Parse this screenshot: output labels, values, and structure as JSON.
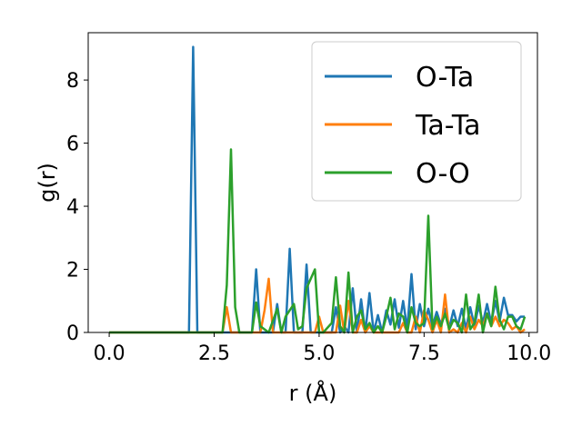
{
  "chart_data": {
    "type": "line",
    "xlabel": "r (Å)",
    "ylabel": "g(r)",
    "xlim": [
      -0.5,
      10.2
    ],
    "ylim": [
      0,
      9.5
    ],
    "xticks": [
      0.0,
      2.5,
      5.0,
      7.5,
      10.0
    ],
    "xtick_labels": [
      "0.0",
      "2.5",
      "5.0",
      "7.5",
      "10.0"
    ],
    "yticks": [
      0,
      2,
      4,
      6,
      8
    ],
    "ytick_labels": [
      "0",
      "2",
      "4",
      "6",
      "8"
    ],
    "grid": false,
    "legend_position": "top-right",
    "series": [
      {
        "name": "O-Ta",
        "color": "#1f77b4",
        "x": [
          0.0,
          1.9,
          2.0,
          2.1,
          3.4,
          3.5,
          3.6,
          3.9,
          4.0,
          4.1,
          4.2,
          4.3,
          4.4,
          4.6,
          4.7,
          4.8,
          4.9,
          5.1,
          5.2,
          5.3,
          5.4,
          5.5,
          5.6,
          5.7,
          5.8,
          5.9,
          6.0,
          6.1,
          6.2,
          6.3,
          6.4,
          6.5,
          6.6,
          6.7,
          6.8,
          6.9,
          7.0,
          7.1,
          7.2,
          7.3,
          7.4,
          7.5,
          7.6,
          7.7,
          7.8,
          7.9,
          8.0,
          8.1,
          8.2,
          8.3,
          8.4,
          8.5,
          8.6,
          8.7,
          8.8,
          8.9,
          9.0,
          9.1,
          9.2,
          9.3,
          9.4,
          9.5,
          9.6,
          9.7,
          9.8,
          9.9
        ],
        "y": [
          0,
          0,
          9.05,
          0,
          0,
          2.0,
          0,
          0,
          0.9,
          0,
          0,
          2.65,
          0,
          0,
          2.15,
          0,
          0,
          0,
          0,
          0,
          0.8,
          0,
          0.2,
          0,
          1.4,
          0,
          1.05,
          0,
          1.25,
          0,
          0.55,
          0,
          0.7,
          0.25,
          1.05,
          0.15,
          1.0,
          0.1,
          1.85,
          0.1,
          0.9,
          0.2,
          0.75,
          0.2,
          0.65,
          0.25,
          0.75,
          0.15,
          0.7,
          0.2,
          0.75,
          0.1,
          0.8,
          0.2,
          0.85,
          0.3,
          0.9,
          0.3,
          1.0,
          0.35,
          1.1,
          0.55,
          0.55,
          0.35,
          0.5,
          0.5
        ]
      },
      {
        "name": "Ta-Ta",
        "color": "#ff7f0e",
        "x": [
          0.0,
          2.7,
          2.8,
          2.9,
          3.6,
          3.7,
          3.8,
          3.9,
          4.9,
          5.0,
          5.1,
          5.4,
          5.5,
          5.6,
          5.7,
          5.8,
          5.9,
          6.0,
          6.1,
          6.2,
          6.3,
          6.9,
          7.0,
          7.1,
          7.2,
          7.3,
          7.4,
          7.5,
          7.6,
          7.7,
          7.8,
          7.9,
          8.0,
          8.1,
          8.2,
          8.3,
          8.4,
          8.5,
          8.6,
          8.7,
          8.8,
          8.9,
          9.0,
          9.1,
          9.2,
          9.3,
          9.4,
          9.5,
          9.6,
          9.7,
          9.8,
          9.9
        ],
        "y": [
          0,
          0,
          0.8,
          0,
          0,
          0.7,
          1.7,
          0,
          0,
          0.5,
          0,
          0,
          0.85,
          0,
          1.0,
          0,
          0,
          0.4,
          0,
          0.2,
          0,
          0,
          0.3,
          0,
          0,
          0.5,
          0,
          0.7,
          0.4,
          0,
          0.4,
          0,
          1.2,
          0,
          0.1,
          0,
          0.3,
          0,
          0.5,
          0.1,
          0.4,
          0.2,
          0.6,
          0.2,
          0.5,
          0.2,
          0.4,
          0.3,
          0.1,
          0.2,
          0,
          0.1
        ]
      },
      {
        "name": "O-O",
        "color": "#2ca02c",
        "x": [
          0.0,
          2.7,
          2.8,
          2.9,
          3.0,
          3.1,
          3.4,
          3.5,
          3.6,
          3.8,
          4.0,
          4.1,
          4.2,
          4.4,
          4.5,
          4.6,
          4.7,
          4.9,
          5.0,
          5.1,
          5.3,
          5.4,
          5.5,
          5.6,
          5.7,
          5.8,
          5.9,
          6.0,
          6.1,
          6.2,
          6.3,
          6.4,
          6.5,
          6.6,
          6.7,
          6.8,
          6.9,
          7.0,
          7.1,
          7.2,
          7.3,
          7.4,
          7.5,
          7.6,
          7.7,
          7.8,
          7.9,
          8.0,
          8.1,
          8.2,
          8.3,
          8.4,
          8.5,
          8.6,
          8.7,
          8.8,
          8.9,
          9.0,
          9.1,
          9.2,
          9.3,
          9.4,
          9.5,
          9.6,
          9.7,
          9.8,
          9.9
        ],
        "y": [
          0,
          0,
          1.5,
          5.8,
          0.8,
          0,
          0,
          0.95,
          0.2,
          0,
          0.75,
          0,
          0.5,
          0.9,
          0.1,
          0.2,
          1.4,
          2.0,
          0,
          0,
          0.3,
          1.75,
          0.2,
          0,
          1.9,
          0,
          0.5,
          0.7,
          0.1,
          0.3,
          0,
          0.2,
          0,
          0.5,
          1.1,
          0.1,
          0.6,
          0.5,
          0,
          0.8,
          0.3,
          0.2,
          0.3,
          3.7,
          0.1,
          0.5,
          0.2,
          0.6,
          0.1,
          0.4,
          0.3,
          0,
          1.2,
          0.1,
          0.3,
          1.2,
          0,
          0.6,
          0.2,
          1.45,
          0.4,
          0.1,
          0.5,
          0.5,
          0.2,
          0.1,
          0.5
        ]
      }
    ]
  }
}
